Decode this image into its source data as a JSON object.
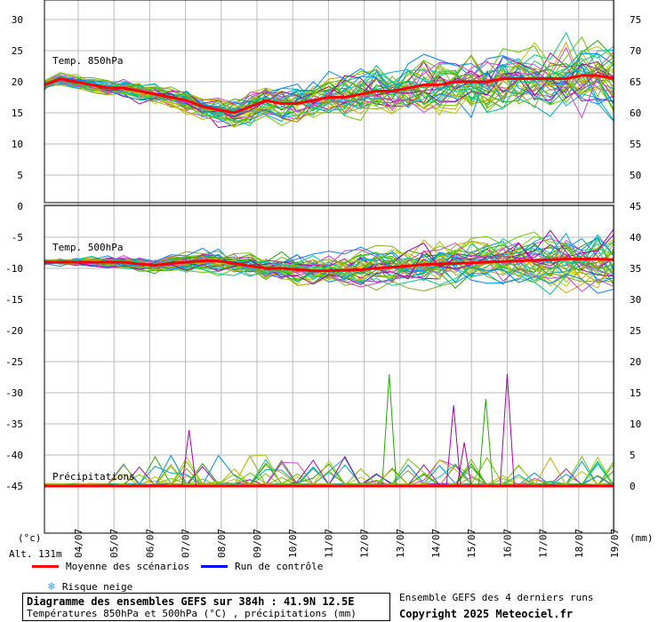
{
  "chart_data": {
    "type": "line",
    "dates": [
      "04/07",
      "05/07",
      "06/07",
      "07/07",
      "08/07",
      "09/07",
      "10/07",
      "11/07",
      "12/07",
      "13/07",
      "14/07",
      "15/07",
      "16/07",
      "17/07",
      "18/07",
      "19/07"
    ],
    "left_ticks": [
      "30",
      "25",
      "20",
      "15",
      "10",
      "5",
      "0",
      "-5",
      "-10",
      "-15",
      "-20",
      "-25",
      "-30",
      "-35",
      "-40",
      "-45"
    ],
    "right_ticks_top": [
      "75",
      "70",
      "65",
      "60",
      "55",
      "50",
      "45"
    ],
    "right_ticks_bottom": [
      "40",
      "35",
      "30",
      "25",
      "20",
      "15",
      "10",
      "5",
      "0"
    ],
    "left_unit": "(°c)",
    "right_unit": "(mm)",
    "altitude": "Alt. 131m",
    "panels": [
      {
        "label": "Temp. 850hPa",
        "units": "°C",
        "mean": [
          19.5,
          20.5,
          20,
          19.5,
          19,
          19,
          18.5,
          18,
          17.5,
          17,
          16,
          15.5,
          15,
          16,
          17,
          16.5,
          16.5,
          17,
          17.5,
          17.5,
          18,
          18.5,
          18.5,
          19,
          19.5,
          19.5,
          20,
          20,
          20,
          20.5,
          20.5,
          20.5,
          20.5,
          20.5,
          21,
          21,
          20.5
        ]
      },
      {
        "label": "Temp. 500hPa",
        "units": "°C",
        "mean": [
          -9,
          -9,
          -9,
          -9,
          -9,
          -9,
          -9.3,
          -9.5,
          -9.2,
          -9,
          -8.8,
          -8.8,
          -9.2,
          -9.6,
          -10,
          -10,
          -10.2,
          -10.4,
          -10.4,
          -10.3,
          -10.2,
          -10,
          -9.8,
          -9.6,
          -9.4,
          -9.3,
          -9.2,
          -9.1,
          -9,
          -8.9,
          -8.8,
          -8.7,
          -8.6,
          -8.5,
          -8.5,
          -8.5,
          -8.6
        ]
      },
      {
        "label": "Précipitations",
        "units": "mm",
        "mean": [
          0,
          0,
          0,
          0,
          0,
          0,
          0,
          0,
          0,
          0,
          0,
          0,
          0,
          0,
          0,
          0,
          0,
          0,
          0,
          0,
          0,
          0,
          0,
          0,
          0,
          0,
          0,
          0,
          0,
          0,
          0,
          0,
          0,
          0,
          0,
          0,
          0
        ]
      }
    ],
    "precip_peaks": [
      {
        "series": "green",
        "date_index": 8.7,
        "value": 18
      },
      {
        "series": "magenta",
        "date_index": 12.0,
        "value": 18
      },
      {
        "series": "magenta",
        "date_index": 10.5,
        "value": 13
      },
      {
        "series": "green",
        "date_index": 11.4,
        "value": 14
      },
      {
        "series": "magenta",
        "date_index": 3.1,
        "value": 9
      },
      {
        "series": "magenta",
        "date_index": 10.8,
        "value": 7
      }
    ],
    "ensemble_note": "Ensemble GEFS des 4 derniers runs",
    "grid": true
  },
  "legend": {
    "mean_label": "Moyenne des scénarios",
    "control_label": "Run de contrôle",
    "snow_label": "Risque neige",
    "mean_color": "#ff0000",
    "control_color": "#0000ff",
    "snow_icon": "snowflake-icon"
  },
  "info": {
    "title": "Diagramme des ensembles GEFS sur 384h : 41.9N 12.5E",
    "subtitle": "Températures 850hPa et 500hPa (°C) , précipitations (mm)",
    "note": "Ensemble GEFS des 4 derniers runs",
    "copyright": "Copyright 2025 Meteociel.fr"
  },
  "colors": {
    "ensemble": [
      "#22aa00",
      "#66cc00",
      "#aacc00",
      "#ccaa00",
      "#00aacc",
      "#0088ff",
      "#aa00aa",
      "#cc44cc",
      "#00cc88",
      "#88aa22"
    ]
  }
}
